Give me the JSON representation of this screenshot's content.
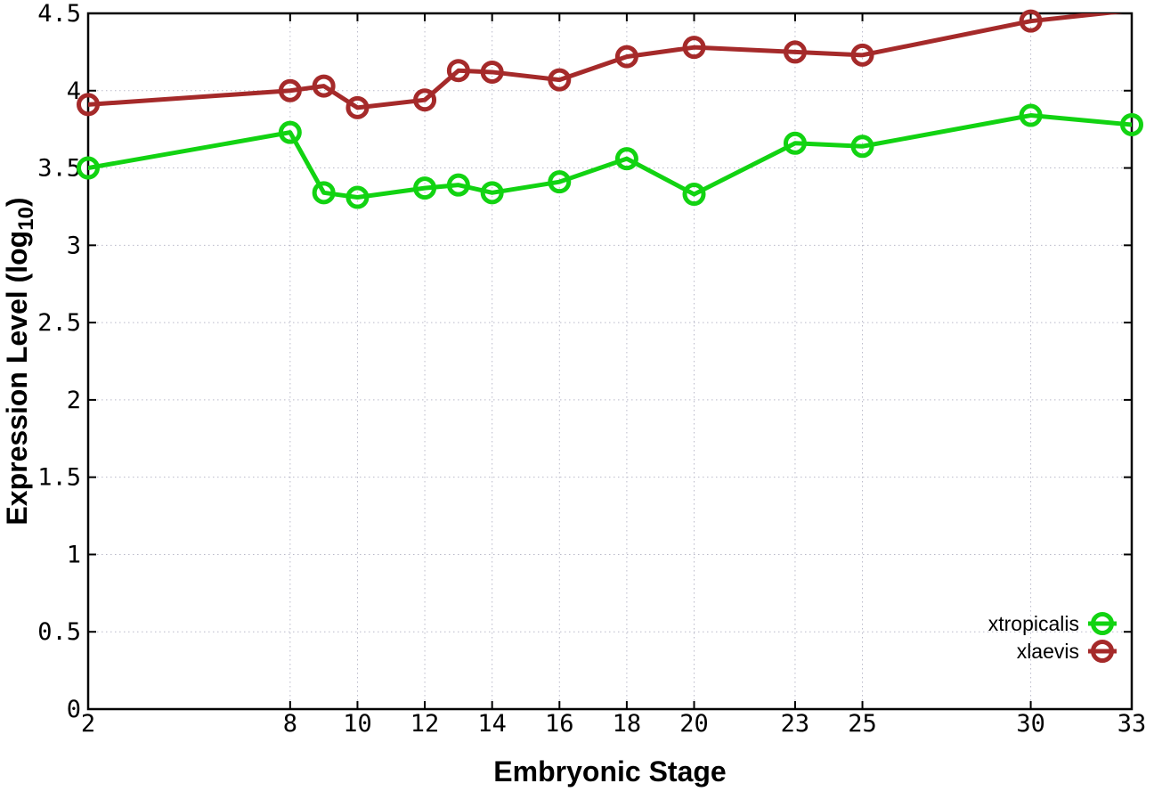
{
  "figure": {
    "background_color": "#ffffff",
    "border_color": "#000000",
    "grid_color": "#b9b9c9"
  },
  "chart_data": {
    "type": "line",
    "xlabel": "Embryonic Stage",
    "ylabel": "Expression Level (log10)",
    "ylabel_parts": {
      "prefix": "Expression Level (log",
      "subscript": "10",
      "suffix": ")"
    },
    "xlim": [
      2,
      33
    ],
    "ylim": [
      0,
      4.5
    ],
    "x_ticks": [
      2,
      8,
      10,
      12,
      14,
      16,
      18,
      20,
      23,
      25,
      30,
      33
    ],
    "y_ticks": [
      0,
      0.5,
      1,
      1.5,
      2,
      2.5,
      3,
      3.5,
      4,
      4.5
    ],
    "y_tick_labels": [
      "0",
      "0.5",
      "1",
      "1.5",
      "2",
      "2.5",
      "3",
      "3.5",
      "4",
      "4.5"
    ],
    "grid": true,
    "legend_position": "bottom-right",
    "x": [
      2,
      8,
      9,
      10,
      12,
      13,
      14,
      16,
      18,
      20,
      23,
      25,
      30,
      33
    ],
    "series": [
      {
        "name": "xtropicalis",
        "color": "#12d312",
        "values": [
          3.5,
          3.73,
          3.34,
          3.31,
          3.37,
          3.39,
          3.34,
          3.41,
          3.56,
          3.33,
          3.66,
          3.64,
          3.84,
          3.78
        ]
      },
      {
        "name": "xlaevis",
        "color": "#a52a2a",
        "values": [
          3.91,
          4.0,
          4.03,
          3.89,
          3.94,
          4.13,
          4.12,
          4.07,
          4.22,
          4.28,
          4.25,
          4.23,
          4.45,
          4.52
        ]
      }
    ]
  }
}
